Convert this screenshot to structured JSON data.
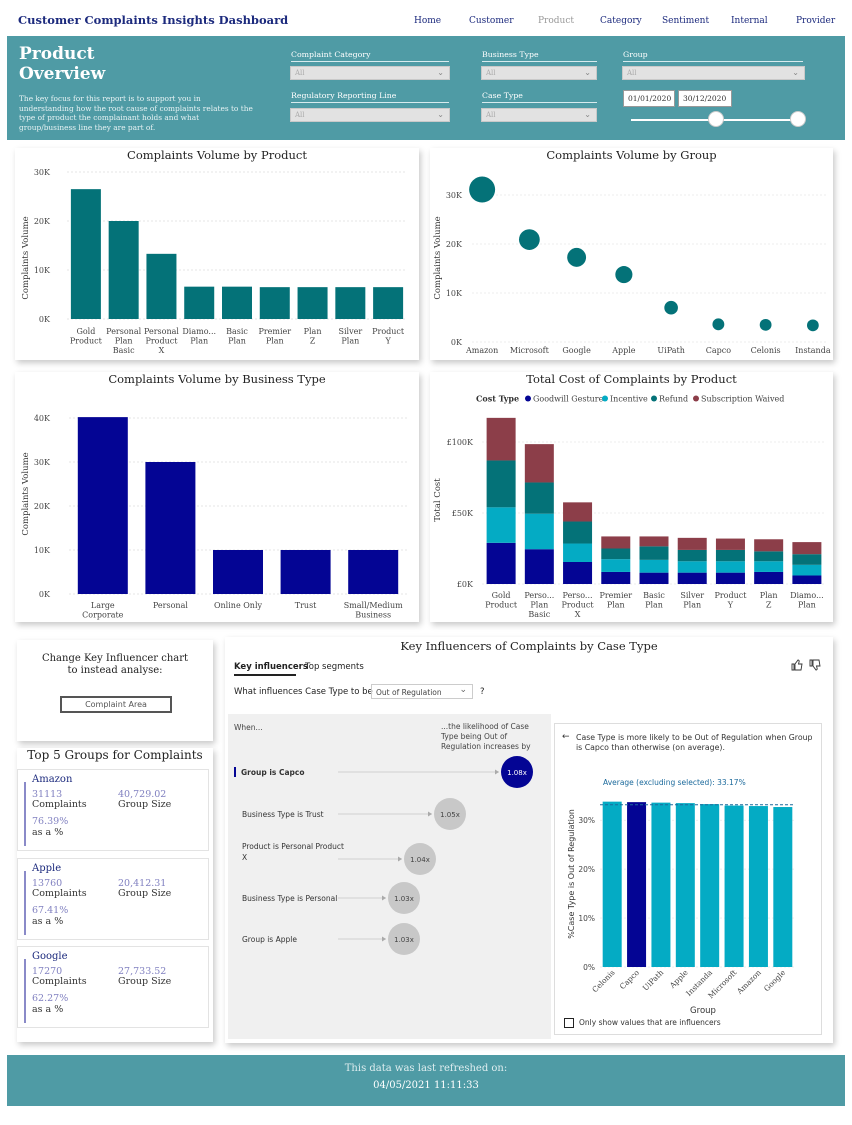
{
  "app": {
    "title": "Customer Complaints Insights Dashboard"
  },
  "nav": [
    {
      "label": "Home",
      "active": false
    },
    {
      "label": "Customer",
      "active": false
    },
    {
      "label": "Product",
      "active": true
    },
    {
      "label": "Category",
      "active": false
    },
    {
      "label": "Sentiment",
      "active": false
    },
    {
      "label": "Internal",
      "active": false
    },
    {
      "label": "Provider",
      "active": false
    }
  ],
  "header": {
    "title": "Product Overview",
    "description": "The key focus for this report is to support you in understanding how the root cause of complaints relates to the type of product the complainant holds and what group/business line they are part of.",
    "filters": {
      "complaint_category": {
        "label": "Complaint Category",
        "value": "All"
      },
      "business_type": {
        "label": "Business Type",
        "value": "All"
      },
      "group": {
        "label": "Group",
        "value": "All"
      },
      "regulatory_line": {
        "label": "Regulatory Reporting Line",
        "value": "All"
      },
      "case_type": {
        "label": "Case Type",
        "value": "All"
      }
    },
    "date_start": "01/01/2020",
    "date_end": "30/12/2020"
  },
  "chart_data": [
    {
      "id": "volume-by-product",
      "type": "bar",
      "title": "Complaints Volume by Product",
      "ylabel": "Complaints Volume",
      "ylim": [
        0,
        30000
      ],
      "yticks": [
        "0K",
        "10K",
        "20K",
        "30K"
      ],
      "categories": [
        "Gold Product",
        "Personal Plan Basic",
        "Personal Product X",
        "Diamo... Plan",
        "Basic Plan",
        "Premier Plan",
        "Plan Z",
        "Silver Plan",
        "Product Y"
      ],
      "values": [
        26500,
        20000,
        13300,
        6600,
        6600,
        6500,
        6500,
        6500,
        6500
      ],
      "color": "#047278"
    },
    {
      "id": "volume-by-group",
      "type": "scatter",
      "title": "Complaints Volume by Group",
      "ylabel": "Complaints Volume",
      "ylim": [
        0,
        35000
      ],
      "yticks": [
        "0K",
        "10K",
        "20K",
        "30K"
      ],
      "categories": [
        "Amazon",
        "Microsoft",
        "Google",
        "Apple",
        "UiPath",
        "Capco",
        "Celonis",
        "Instanda"
      ],
      "values": [
        31113,
        20900,
        17270,
        13760,
        7000,
        3600,
        3500,
        3400
      ],
      "color": "#047278"
    },
    {
      "id": "volume-by-business-type",
      "type": "bar",
      "title": "Complaints Volume by Business Type",
      "ylabel": "Complaints Volume",
      "ylim": [
        0,
        40000
      ],
      "yticks": [
        "0K",
        "10K",
        "20K",
        "30K",
        "40K"
      ],
      "categories": [
        "Large Corporate",
        "Personal",
        "Online Only",
        "Trust",
        "Small/Medium Business"
      ],
      "values": [
        40200,
        30000,
        10000,
        10000,
        10000
      ],
      "color": "#040594"
    },
    {
      "id": "cost-by-product",
      "type": "bar",
      "stacked": true,
      "title": "Total Cost of Complaints by Product",
      "ylabel": "Total Cost",
      "legend_title": "Cost Type",
      "ylim": [
        0,
        120000
      ],
      "yticks": [
        "£0K",
        "£50K",
        "£100K"
      ],
      "categories": [
        "Gold Product",
        "Perso... Plan Basic",
        "Perso... Product X",
        "Premier Plan",
        "Basic Plan",
        "Silver Plan",
        "Product Y",
        "Plan Z",
        "Diamo... Plan"
      ],
      "series": [
        {
          "name": "Goodwill Gesture",
          "color": "#040594",
          "values": [
            29000,
            24500,
            15500,
            8500,
            8000,
            8000,
            8000,
            8500,
            6000
          ]
        },
        {
          "name": "Incentive",
          "color": "#04abc4",
          "values": [
            25000,
            25000,
            13000,
            9000,
            9000,
            8000,
            8000,
            7500,
            7500
          ]
        },
        {
          "name": "Refund",
          "color": "#047278",
          "values": [
            33000,
            22000,
            15500,
            7500,
            9500,
            8000,
            8000,
            7000,
            7500
          ]
        },
        {
          "name": "Subscription Waived",
          "color": "#8c3e49",
          "values": [
            30000,
            27000,
            13500,
            8500,
            7000,
            8500,
            8000,
            8500,
            8500
          ]
        }
      ]
    },
    {
      "id": "ki-case-type-by-group",
      "type": "bar",
      "ylabel": "%Case Type is Out of Regulation",
      "xlabel": "Group",
      "ylim": [
        0,
        37
      ],
      "yticks": [
        "0%",
        "10%",
        "20%",
        "30%"
      ],
      "average": 33.17,
      "average_label": "Average (excluding selected): 33.17%",
      "categories": [
        "Celonis",
        "Capco",
        "UiPath",
        "Apple",
        "Instanda",
        "Microsoft",
        "Amazon",
        "Google"
      ],
      "values": [
        33.8,
        33.7,
        33.6,
        33.5,
        33.3,
        33.0,
        32.9,
        32.7
      ],
      "selected": "Capco",
      "color": "#04abc4",
      "selected_color": "#040594"
    }
  ],
  "key_influencer_prompt": {
    "text": "Change Key Influencer chart to instead analyse:",
    "button_label": "Complaint Area"
  },
  "key_influencers": {
    "title": "Key Influencers of Complaints by Case Type",
    "tabs": [
      {
        "label": "Key influencers",
        "active": true
      },
      {
        "label": "Top segments",
        "active": false
      }
    ],
    "question": "What influences Case Type to be",
    "target_value": "Out of Regulation",
    "help": "?",
    "when_label": "When...",
    "likelihood_label": "...the likelihood of Case Type being Out of Regulation increases by",
    "factors": [
      {
        "label": "Group is Capco",
        "value": "1.08x",
        "selected": true
      },
      {
        "label": "Business Type is Trust",
        "value": "1.05x",
        "selected": false
      },
      {
        "label": "Product is Personal Product X",
        "value": "1.04x",
        "selected": false
      },
      {
        "label": "Business Type is Personal",
        "value": "1.03x",
        "selected": false
      },
      {
        "label": "Group is Apple",
        "value": "1.03x",
        "selected": false
      }
    ],
    "detail_text": "Case Type is more likely to be Out of Regulation when Group is Capco than otherwise (on average).",
    "checkbox_label": "Only show values that are influencers",
    "back_icon": "arrow-left-icon",
    "like_icon": "thumbs-up-icon",
    "dislike_icon": "thumbs-down-icon"
  },
  "top_groups": {
    "title": "Top 5 Groups for Complaints",
    "items": [
      {
        "name": "Amazon",
        "complaints": "31113",
        "complaints_label": "Complaints",
        "group_size": "40,729.02",
        "group_size_label": "Group Size",
        "pct": "76.39%",
        "pct_label": "as a %"
      },
      {
        "name": "Apple",
        "complaints": "13760",
        "complaints_label": "Complaints",
        "group_size": "20,412.31",
        "group_size_label": "Group Size",
        "pct": "67.41%",
        "pct_label": "as a %"
      },
      {
        "name": "Google",
        "complaints": "17270",
        "complaints_label": "Complaints",
        "group_size": "27,733.52",
        "group_size_label": "Group Size",
        "pct": "62.27%",
        "pct_label": "as a %"
      }
    ]
  },
  "footer": {
    "refresh_label": "This data was last refreshed on:",
    "refresh_time": "04/05/2021 11:11:33"
  }
}
